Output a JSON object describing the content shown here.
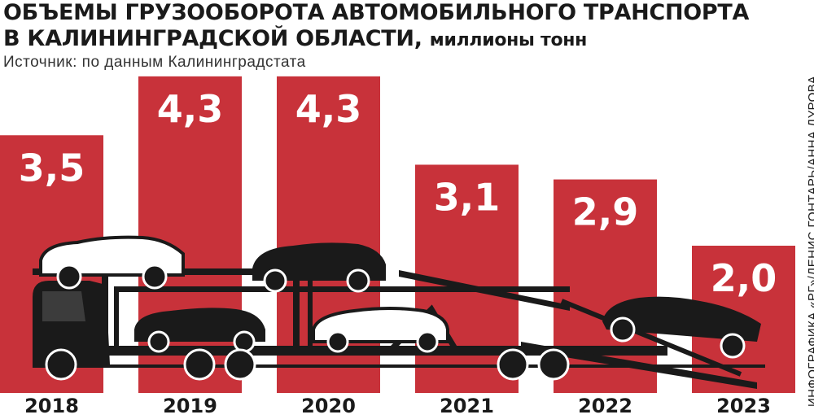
{
  "title_main": "ОБЪЕМЫ ГРУЗООБОРОТА АВТОМОБИЛЬНОГО ТРАНСПОРТА",
  "title_line2": "В КАЛИНИНГРАДСКОЙ ОБЛАСТИ,",
  "title_unit": "миллионы тонн",
  "source": "Источник: по данным Калининградстата",
  "credit": "ИНФОГРАФИКА «РГ»/ДЕНИС ГОНТАРЬ/АННА ДУРОВА",
  "colors": {
    "bar": "#c8323a",
    "label": "#ffffff",
    "text": "#1a1a1a"
  },
  "chart_data": {
    "type": "bar",
    "categories": [
      "2018",
      "2019",
      "2020",
      "2021",
      "2022",
      "2023"
    ],
    "values": [
      3.5,
      4.3,
      4.3,
      3.1,
      2.9,
      2.0
    ],
    "value_labels": [
      "3,5",
      "4,3",
      "4,3",
      "3,1",
      "2,9",
      "2,0"
    ],
    "ylim": [
      0,
      4.8
    ],
    "grid": false,
    "legend": "none",
    "illustration": "car-transporter-truck-with-cars"
  }
}
